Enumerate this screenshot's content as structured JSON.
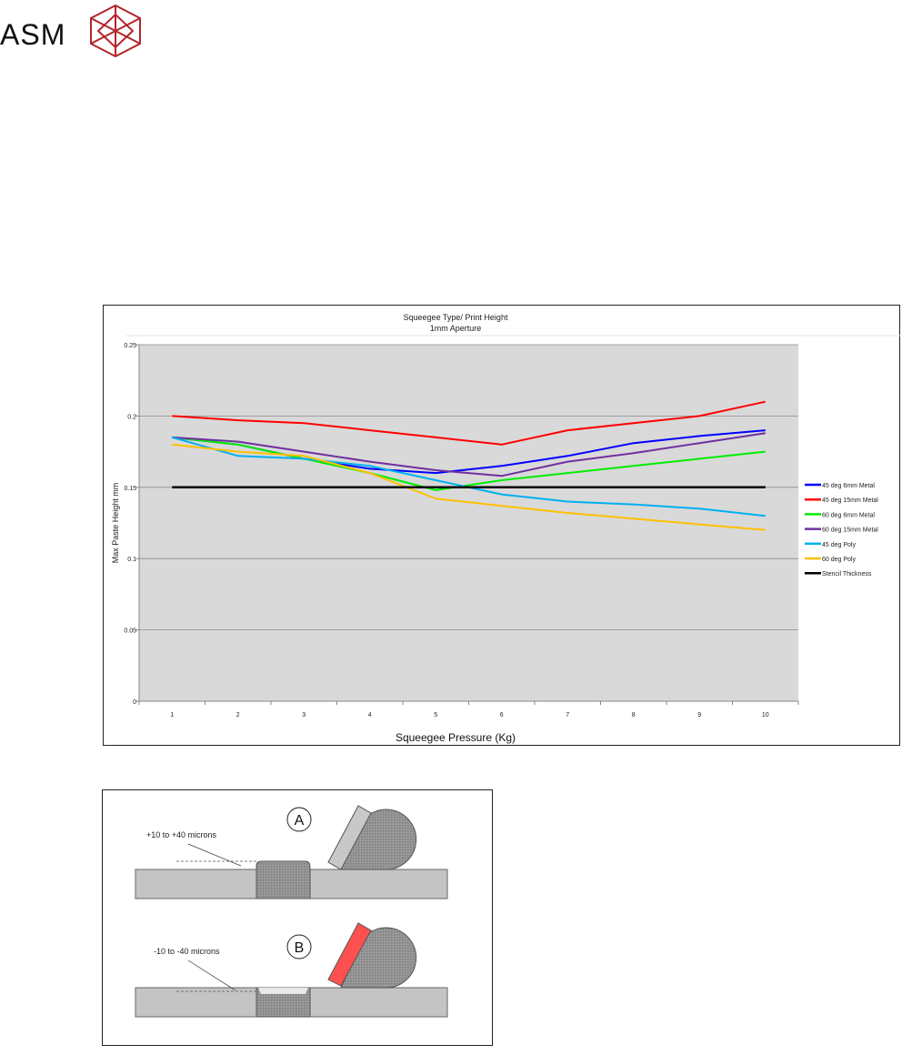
{
  "logo": {
    "text": "ASM",
    "color": "#b3262b"
  },
  "chart_data": {
    "type": "line",
    "title": "Squeegee Type/ Print Height",
    "subtitle": "1mm Aperture",
    "xlabel": "Squeegee Pressure (Kg)",
    "ylabel": "Max Paste Height mm",
    "x": [
      1,
      2,
      3,
      4,
      5,
      6,
      7,
      8,
      9,
      10
    ],
    "x_tick_labels": [
      "1",
      "2",
      "3",
      "4",
      "5",
      "6",
      "7",
      "8",
      "9",
      "10"
    ],
    "y_tick_labels": [
      "0",
      "0.05",
      "0.1",
      "0.15",
      "0.2",
      "0.25"
    ],
    "y_ticks": [
      0,
      0.05,
      0.1,
      0.15,
      0.2,
      0.25
    ],
    "ylim": [
      0,
      0.25
    ],
    "grid": true,
    "legend_position": "right",
    "series": [
      {
        "name": "45 deg 6mm Metal",
        "color": "#0000ff",
        "values": [
          0.185,
          0.18,
          0.17,
          0.163,
          0.16,
          0.165,
          0.172,
          0.181,
          0.186,
          0.19
        ]
      },
      {
        "name": "45 deg 15mm Metal",
        "color": "#ff0000",
        "values": [
          0.2,
          0.197,
          0.195,
          0.19,
          0.185,
          0.18,
          0.19,
          0.195,
          0.2,
          0.21
        ]
      },
      {
        "name": "60 deg 6mm Metal",
        "color": "#00ee00",
        "values": [
          0.185,
          0.18,
          0.17,
          0.16,
          0.148,
          0.155,
          0.16,
          0.165,
          0.17,
          0.175
        ]
      },
      {
        "name": "60 deg 15mm Metal",
        "color": "#7030a0",
        "values": [
          0.185,
          0.182,
          0.175,
          0.168,
          0.162,
          0.158,
          0.168,
          0.174,
          0.181,
          0.188
        ]
      },
      {
        "name": "45 deg Poly",
        "color": "#00b0f0",
        "values": [
          0.185,
          0.172,
          0.17,
          0.165,
          0.155,
          0.145,
          0.14,
          0.138,
          0.135,
          0.13
        ]
      },
      {
        "name": "60 deg Poly",
        "color": "#ffc000",
        "values": [
          0.18,
          0.175,
          0.172,
          0.16,
          0.142,
          0.137,
          0.132,
          0.128,
          0.124,
          0.12
        ]
      },
      {
        "name": "Stencil Thickness",
        "color": "#000000",
        "values": [
          0.15,
          0.15,
          0.15,
          0.15,
          0.15,
          0.15,
          0.15,
          0.15,
          0.15,
          0.15
        ]
      }
    ]
  },
  "diagram": {
    "label_a": "A",
    "label_b": "B",
    "text_a": "+10 to +40 microns",
    "text_b": "-10 to -40 microns",
    "blade_b_color": "#ff5050"
  }
}
